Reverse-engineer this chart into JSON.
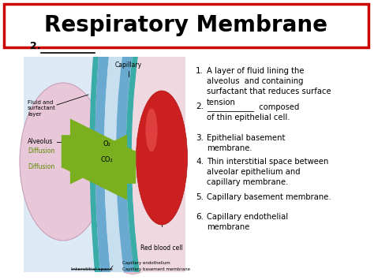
{
  "title": "Respiratory Membrane",
  "title_fontsize": 20,
  "title_box_color": "#cc0000",
  "bg_color": "#ffffff",
  "right_items": [
    {
      "num": "1.",
      "text": "A layer of fluid lining the\nalveolus  and containing\nsurfactant that reduces surface\ntension"
    },
    {
      "num": "2.",
      "text": "____________  composed\nof thin epithelial cell."
    },
    {
      "num": "3.",
      "text": "Epithelial basement\nmembrane."
    },
    {
      "num": "4.",
      "text": "Thin interstitial space between\nalveolar epithelium and\ncapillary membrane."
    },
    {
      "num": "5.",
      "text": "Capillary basement membrane."
    },
    {
      "num": "6.",
      "text": "Capillary endothelial\nmembrane"
    }
  ],
  "diagram_bg": "#ddeaf5",
  "rbc_color": "#cc2020",
  "rbc_highlight": "#ee5555"
}
